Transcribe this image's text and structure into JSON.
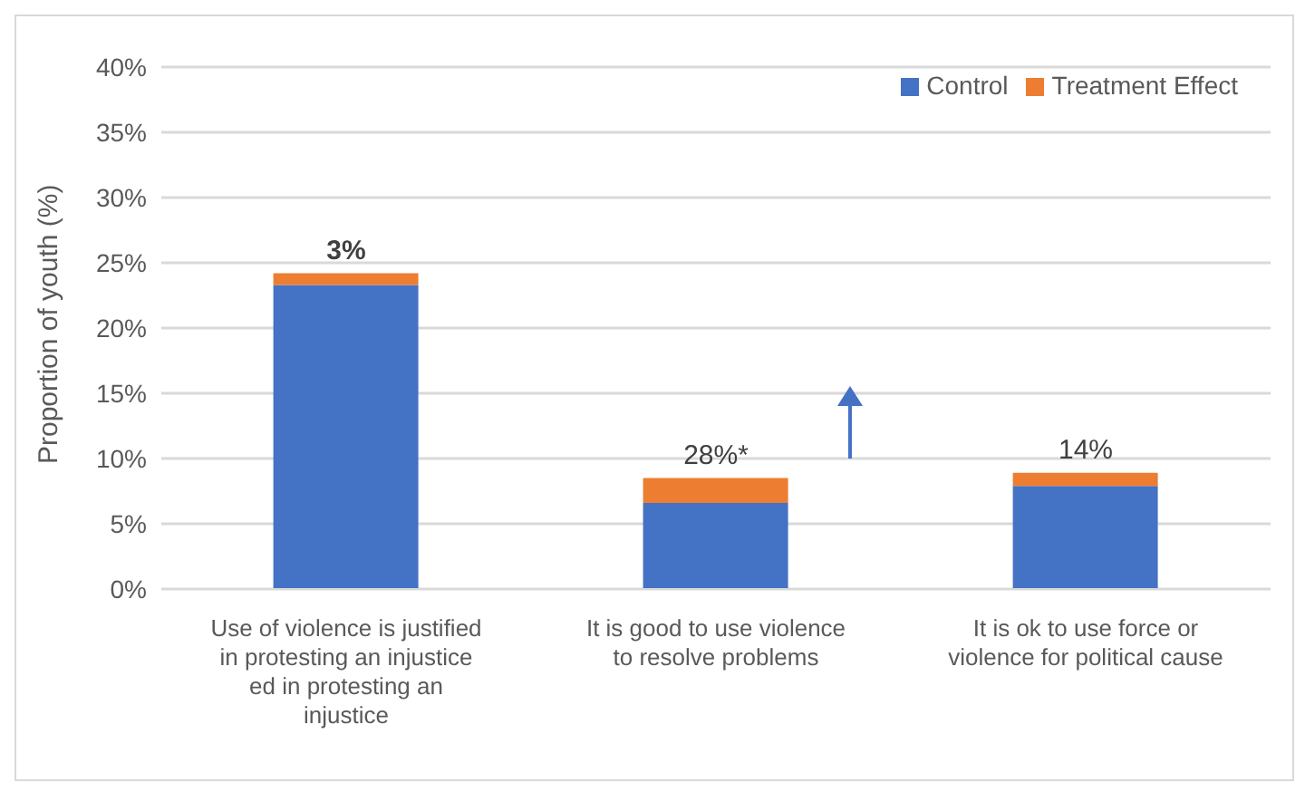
{
  "chart_data": {
    "type": "bar",
    "stacked": true,
    "ylabel": "Proportion of youth (%)",
    "categories": [
      "Use of violence is justified in protesting an injustice ed in protesting an injustice",
      "It is good to use violence to resolve problems",
      "It is ok to use force or violence for political cause"
    ],
    "series": [
      {
        "name": "Control",
        "color": "#4472c4",
        "values": [
          23.3,
          6.6,
          7.9
        ]
      },
      {
        "name": "Treatment Effect",
        "color": "#ed7d31",
        "values": [
          0.9,
          1.9,
          1.0
        ]
      }
    ],
    "ylim": [
      0,
      40
    ],
    "yticks": [
      {
        "value": 0,
        "label": "0%"
      },
      {
        "value": 5,
        "label": "5%"
      },
      {
        "value": 10,
        "label": "10%"
      },
      {
        "value": 15,
        "label": "15%"
      },
      {
        "value": 20,
        "label": "20%"
      },
      {
        "value": 25,
        "label": "25%"
      },
      {
        "value": 30,
        "label": "30%"
      },
      {
        "value": 35,
        "label": "35%"
      },
      {
        "value": 40,
        "label": "40%"
      }
    ],
    "grid": "y",
    "legend": "top right",
    "annotations": [
      {
        "text": "3%",
        "x": "Use of violence is justified in protesting an injustice ed in protesting an injustice",
        "y": 24.2
      },
      {
        "text": "28%*",
        "x": "It is good to use violence to resolve problems",
        "y": 8.5
      },
      {
        "text": "14%",
        "x": "It is ok to use force or violence for political cause",
        "y": 8.9
      }
    ]
  }
}
